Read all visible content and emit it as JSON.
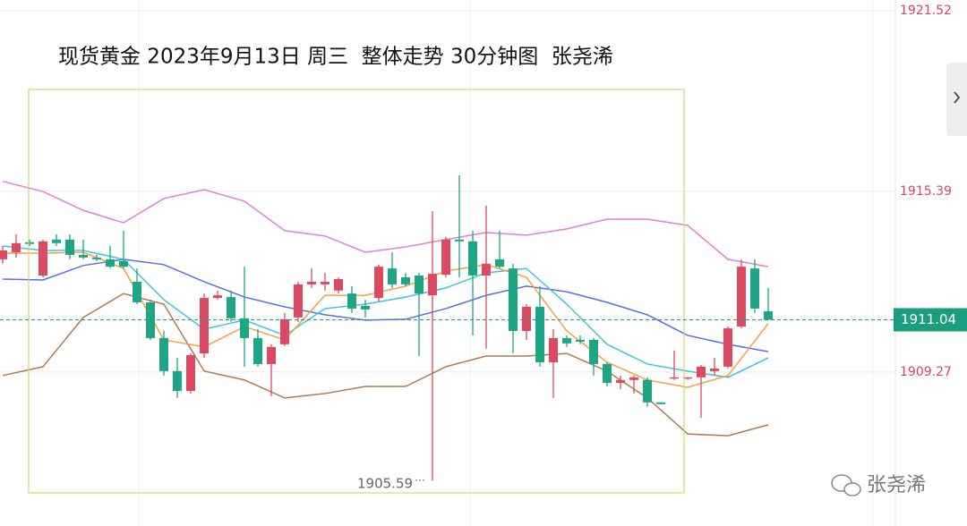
{
  "chart_data": {
    "type": "candlestick",
    "title": "现货黄金 2023年9月13日 周三  整体走势 30分钟图  张尧浠",
    "watermark": "张尧浠",
    "ylim": [
      1904.05,
      1921.88
    ],
    "yticks": [
      1921.52,
      1915.39,
      1909.27
    ],
    "grid": true,
    "up_color": "#dc4a62",
    "down_color": "#1ea585",
    "last_price": 1911.04,
    "last_price_color": "#1a9e7f",
    "low_label": 1905.59,
    "ohlc": [
      [
        1913.09,
        1913.54,
        1912.94,
        1913.39
      ],
      [
        1913.33,
        1913.94,
        1913.15,
        1913.64
      ],
      [
        1913.67,
        1913.76,
        1913.54,
        1913.61
      ],
      [
        1912.54,
        1913.76,
        1912.48,
        1913.7
      ],
      [
        1913.76,
        1913.94,
        1913.54,
        1913.64
      ],
      [
        1913.76,
        1913.94,
        1913.09,
        1913.24
      ],
      [
        1913.24,
        1913.76,
        1913.09,
        1913.15
      ],
      [
        1913.15,
        1913.24,
        1913.03,
        1913.09
      ],
      [
        1913.09,
        1913.54,
        1912.78,
        1912.84
      ],
      [
        1913.03,
        1914.06,
        1912.78,
        1912.84
      ],
      [
        1912.33,
        1912.78,
        1911.57,
        1911.63
      ],
      [
        1911.63,
        1911.72,
        1910.36,
        1910.42
      ],
      [
        1910.42,
        1910.66,
        1909.15,
        1909.3
      ],
      [
        1909.3,
        1909.75,
        1908.39,
        1908.63
      ],
      [
        1908.63,
        1909.9,
        1908.54,
        1909.84
      ],
      [
        1909.9,
        1911.93,
        1909.75,
        1911.78
      ],
      [
        1911.78,
        1912.03,
        1911.72,
        1911.87
      ],
      [
        1911.81,
        1912.03,
        1910.97,
        1911.09
      ],
      [
        1911.09,
        1912.84,
        1909.45,
        1910.42
      ],
      [
        1910.42,
        1910.72,
        1909.45,
        1909.54
      ],
      [
        1909.54,
        1910.21,
        1908.45,
        1910.12
      ],
      [
        1910.21,
        1911.27,
        1910.15,
        1911.06
      ],
      [
        1911.12,
        1912.33,
        1910.97,
        1912.24
      ],
      [
        1912.24,
        1912.78,
        1912.12,
        1912.33
      ],
      [
        1912.24,
        1912.63,
        1912.03,
        1912.33
      ],
      [
        1912.03,
        1912.48,
        1911.93,
        1912.42
      ],
      [
        1911.93,
        1912.18,
        1911.27,
        1911.42
      ],
      [
        1911.51,
        1911.72,
        1911.12,
        1911.39
      ],
      [
        1911.78,
        1912.91,
        1911.66,
        1912.84
      ],
      [
        1912.78,
        1913.33,
        1912.12,
        1912.24
      ],
      [
        1912.48,
        1912.63,
        1912.18,
        1912.24
      ],
      [
        1912.54,
        1912.63,
        1909.81,
        1911.93
      ],
      [
        1911.87,
        1914.72,
        1905.59,
        1912.6
      ],
      [
        1912.57,
        1913.85,
        1912.48,
        1913.76
      ],
      [
        1913.76,
        1915.94,
        1912.48,
        1913.7
      ],
      [
        1913.7,
        1914.06,
        1910.51,
        1912.54
      ],
      [
        1912.54,
        1914.91,
        1910.06,
        1912.94
      ],
      [
        1913.09,
        1914.06,
        1912.78,
        1912.84
      ],
      [
        1912.78,
        1912.94,
        1909.9,
        1910.66
      ],
      [
        1910.66,
        1911.57,
        1910.36,
        1911.48
      ],
      [
        1911.48,
        1912.18,
        1909.45,
        1909.6
      ],
      [
        1909.6,
        1910.72,
        1908.39,
        1910.42
      ],
      [
        1910.42,
        1910.51,
        1910.12,
        1910.24
      ],
      [
        1910.36,
        1910.51,
        1910.21,
        1910.3
      ],
      [
        1910.36,
        1910.42,
        1909.15,
        1909.54
      ],
      [
        1909.54,
        1909.6,
        1908.78,
        1908.9
      ],
      [
        1908.9,
        1909.15,
        1908.69,
        1909.0
      ],
      [
        1909.0,
        1909.15,
        1908.54,
        1909.09
      ],
      [
        1909.0,
        1909.09,
        1908.09,
        1908.24
      ],
      [
        1908.24,
        1908.24,
        1908.18,
        1908.18
      ],
      [
        1909.06,
        1910.0,
        1909.0,
        1909.09
      ],
      [
        1909.06,
        1909.09,
        1909.0,
        1909.09
      ],
      [
        1909.09,
        1909.51,
        1907.72,
        1909.45
      ],
      [
        1909.3,
        1909.75,
        1909.15,
        1909.39
      ],
      [
        1909.45,
        1910.81,
        1909.39,
        1910.75
      ],
      [
        1910.81,
        1913.09,
        1910.75,
        1912.84
      ],
      [
        1912.78,
        1913.09,
        1911.27,
        1911.42
      ],
      [
        1911.33,
        1912.12,
        1911.09,
        1911.04
      ]
    ],
    "x": [
      0,
      3,
      6,
      9,
      12,
      15,
      18,
      21,
      24,
      27,
      30,
      33,
      36,
      39,
      42,
      45,
      48,
      51,
      54,
      57
    ],
    "series": [
      {
        "color": "#e07fd8",
        "values": [
          1915.73,
          1915.39,
          1914.75,
          1914.33,
          1915.15,
          1915.45,
          1915.06,
          1914.06,
          1913.88,
          1913.33,
          1913.51,
          1913.76,
          1914.0,
          1913.91,
          1914.12,
          1914.45,
          1914.45,
          1914.24,
          1913.09,
          1912.84
        ]
      },
      {
        "color": "#b07a4f",
        "values": [
          1909.15,
          1909.45,
          1911.12,
          1911.93,
          1911.57,
          1909.3,
          1909.0,
          1908.39,
          1908.54,
          1908.78,
          1908.78,
          1909.45,
          1909.81,
          1909.81,
          1909.9,
          1909.3,
          1908.39,
          1907.17,
          1907.11,
          1907.48
        ]
      },
      {
        "color": "#5a6fe0",
        "values": [
          1912.42,
          1912.39,
          1912.88,
          1913.09,
          1912.91,
          1912.33,
          1911.81,
          1911.48,
          1911.21,
          1911.03,
          1911.06,
          1911.42,
          1911.87,
          1912.18,
          1911.99,
          1911.63,
          1911.21,
          1910.51,
          1910.21,
          1909.96
        ]
      },
      {
        "color": "#3ec5e0",
        "values": [
          1913.54,
          1913.39,
          1913.39,
          1913.09,
          1911.72,
          1910.72,
          1911.03,
          1910.51,
          1911.42,
          1911.57,
          1911.81,
          1912.12,
          1912.63,
          1912.78,
          1911.57,
          1910.21,
          1909.54,
          1909.3,
          1909.09,
          1909.75
        ]
      },
      {
        "color": "#f5a040",
        "values": [
          1913.3,
          1913.3,
          1913.33,
          1912.78,
          1910.36,
          1910.12,
          1910.81,
          1910.36,
          1911.87,
          1911.87,
          1912.18,
          1912.69,
          1912.91,
          1912.48,
          1910.66,
          1909.6,
          1909.0,
          1908.75,
          1909.15,
          1910.91
        ]
      }
    ]
  }
}
